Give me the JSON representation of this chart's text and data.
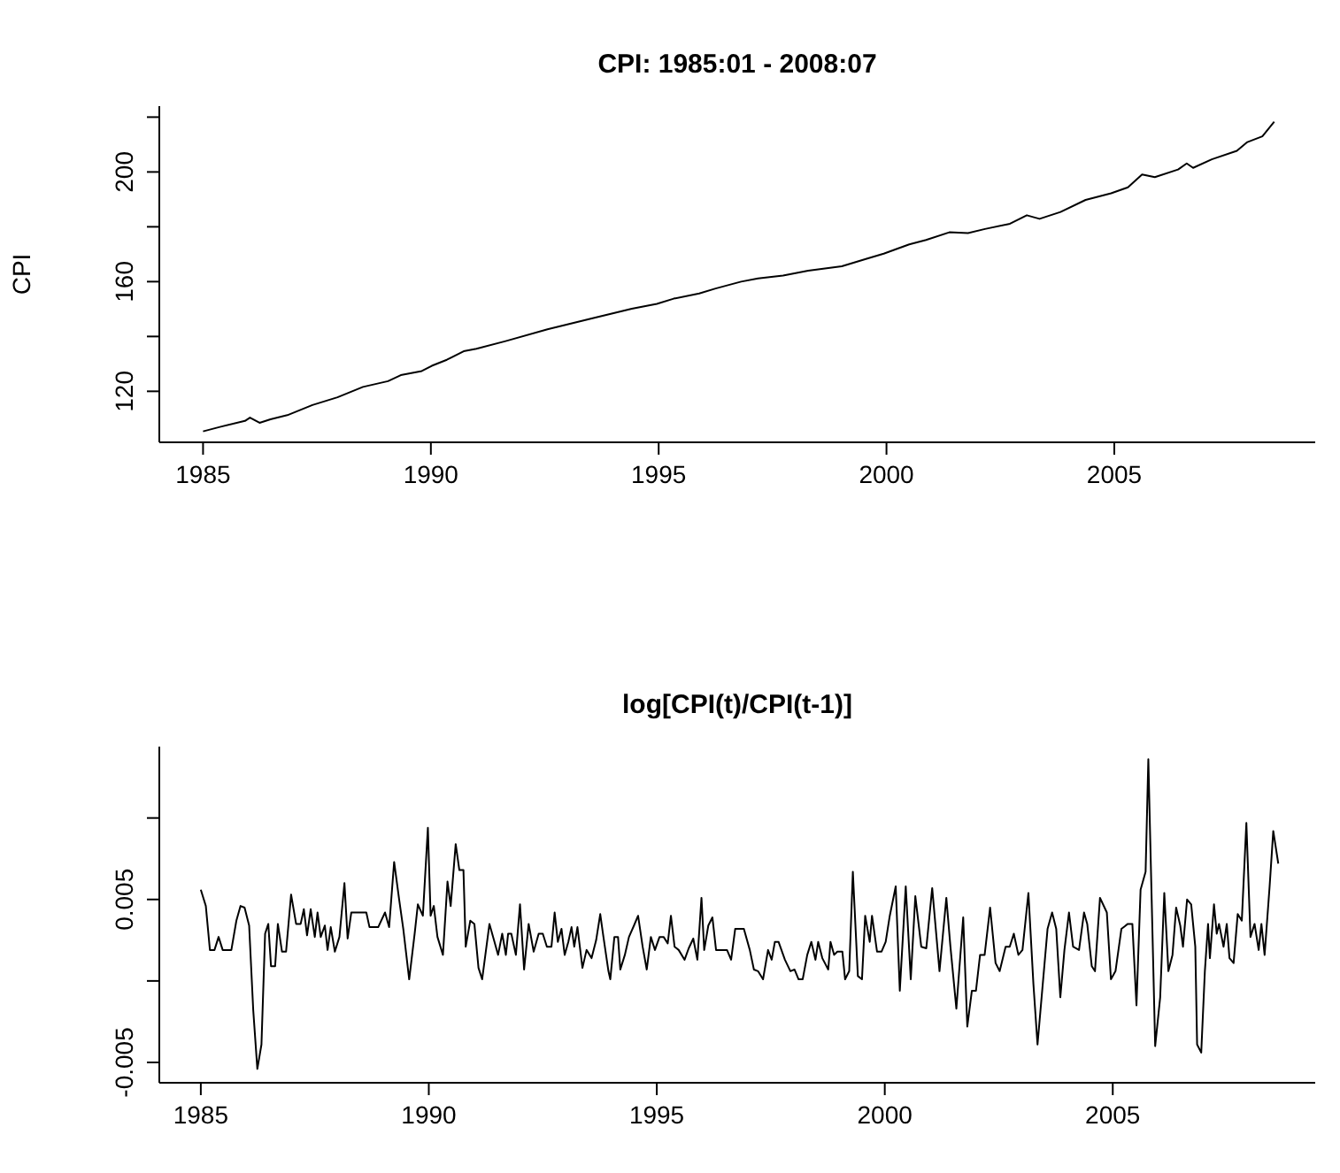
{
  "chart_data": [
    {
      "type": "line",
      "title": "CPI: 1985:01 - 2008:07",
      "ylabel": "CPI",
      "color": "#000000",
      "x": [
        1985.0,
        1985.37,
        1985.92,
        1986.03,
        1986.24,
        1986.48,
        1986.85,
        1987.4,
        1987.95,
        1988.51,
        1989.06,
        1989.34,
        1989.8,
        1990.02,
        1990.35,
        1990.72,
        1991.0,
        1991.64,
        1992.56,
        1993.49,
        1994.41,
        1994.96,
        1995.33,
        1995.89,
        1996.25,
        1996.81,
        1997.18,
        1997.73,
        1998.28,
        1999.02,
        1999.58,
        1999.94,
        2000.5,
        2000.87,
        2001.38,
        2001.79,
        2002.16,
        2002.71,
        2003.08,
        2003.36,
        2003.82,
        2004.37,
        2004.93,
        2005.3,
        2005.61,
        2005.89,
        2006.4,
        2006.59,
        2006.73,
        2007.14,
        2007.69,
        2007.91,
        2008.25,
        2008.51
      ],
      "values": [
        105.4,
        107,
        109.2,
        110.4,
        108.5,
        109.8,
        111.3,
        115.0,
        117.8,
        121.6,
        123.7,
        125.9,
        127.4,
        129.3,
        131.5,
        134.6,
        135.5,
        138.3,
        142.6,
        146.4,
        150.1,
        151.9,
        153.8,
        155.7,
        157.5,
        160.0,
        161.2,
        162.2,
        164.0,
        165.6,
        168.4,
        170.2,
        173.6,
        175.2,
        178.0,
        177.7,
        179.2,
        181.1,
        184.2,
        182.9,
        185.4,
        189.8,
        192.2,
        194.4,
        199.1,
        198.1,
        200.9,
        203.1,
        201.5,
        204.6,
        207.7,
        210.8,
        213.0,
        218.3
      ],
      "xlim": [
        1984.04,
        2009.41
      ],
      "ylim": [
        101.4,
        224
      ],
      "xticks": [
        1985,
        1990,
        1995,
        2000,
        2005
      ],
      "yticks": [
        120,
        {
          "value": 140,
          "label": null
        },
        160,
        {
          "value": 180,
          "label": null
        },
        200,
        {
          "value": 220,
          "label": null
        }
      ]
    },
    {
      "type": "line",
      "title": "log[CPI(t)/CPI(t-1)]",
      "color": "#000000",
      "x": [
        1985.0,
        1985.11,
        1985.2,
        1985.3,
        1985.39,
        1985.48,
        1985.61,
        1985.67,
        1985.78,
        1985.87,
        1985.96,
        1986.06,
        1986.15,
        1986.24,
        1986.33,
        1986.37,
        1986.41,
        1986.48,
        1986.54,
        1986.63,
        1986.69,
        1986.78,
        1986.87,
        1986.98,
        1987.09,
        1987.19,
        1987.26,
        1987.33,
        1987.41,
        1987.5,
        1987.56,
        1987.63,
        1987.72,
        1987.78,
        1987.85,
        1987.94,
        1988.04,
        1988.15,
        1988.22,
        1988.3,
        1988.48,
        1988.63,
        1988.7,
        1988.89,
        1989.04,
        1989.13,
        1989.24,
        1989.35,
        1989.44,
        1989.57,
        1989.69,
        1989.76,
        1989.87,
        1989.98,
        1990.04,
        1990.11,
        1990.19,
        1990.31,
        1990.41,
        1990.48,
        1990.59,
        1990.67,
        1990.76,
        1990.81,
        1990.91,
        1991.0,
        1991.09,
        1991.17,
        1991.33,
        1991.43,
        1991.52,
        1991.61,
        1991.69,
        1991.74,
        1991.81,
        1991.91,
        1992.0,
        1992.09,
        1992.19,
        1992.3,
        1992.41,
        1992.5,
        1992.59,
        1992.69,
        1992.76,
        1992.83,
        1992.91,
        1992.98,
        1993.06,
        1993.13,
        1993.19,
        1993.26,
        1993.37,
        1993.46,
        1993.57,
        1993.67,
        1993.76,
        1993.83,
        1993.94,
        1993.98,
        1994.07,
        1994.15,
        1994.2,
        1994.3,
        1994.39,
        1994.5,
        1994.59,
        1994.69,
        1994.78,
        1994.87,
        1994.96,
        1995.06,
        1995.15,
        1995.24,
        1995.31,
        1995.39,
        1995.48,
        1995.61,
        1995.7,
        1995.8,
        1995.89,
        1995.98,
        1996.04,
        1996.13,
        1996.22,
        1996.3,
        1996.44,
        1996.54,
        1996.63,
        1996.72,
        1996.91,
        1997.04,
        1997.13,
        1997.22,
        1997.33,
        1997.44,
        1997.52,
        1997.59,
        1997.67,
        1997.81,
        1997.93,
        1998.02,
        1998.11,
        1998.2,
        1998.3,
        1998.39,
        1998.48,
        1998.54,
        1998.63,
        1998.76,
        1998.81,
        1998.89,
        1998.96,
        1999.07,
        1999.13,
        1999.22,
        1999.3,
        1999.41,
        1999.5,
        1999.57,
        1999.67,
        1999.72,
        1999.83,
        1999.93,
        2000.02,
        2000.11,
        2000.24,
        2000.33,
        2000.46,
        2000.57,
        2000.67,
        2000.8,
        2000.91,
        2001.04,
        2001.2,
        2001.35,
        2001.44,
        2001.57,
        2001.72,
        2001.81,
        2001.91,
        2002.0,
        2002.09,
        2002.19,
        2002.31,
        2002.43,
        2002.52,
        2002.65,
        2002.74,
        2002.83,
        2002.93,
        2003.02,
        2003.15,
        2003.26,
        2003.35,
        2003.48,
        2003.57,
        2003.67,
        2003.76,
        2003.85,
        2003.94,
        2004.04,
        2004.13,
        2004.26,
        2004.37,
        2004.44,
        2004.54,
        2004.61,
        2004.72,
        2004.87,
        2004.96,
        2005.06,
        2005.19,
        2005.33,
        2005.43,
        2005.52,
        2005.61,
        2005.72,
        2005.78,
        2005.93,
        2006.04,
        2006.13,
        2006.22,
        2006.31,
        2006.39,
        2006.48,
        2006.54,
        2006.63,
        2006.72,
        2006.81,
        2006.85,
        2006.94,
        2007.02,
        2007.09,
        2007.13,
        2007.22,
        2007.28,
        2007.33,
        2007.43,
        2007.5,
        2007.56,
        2007.65,
        2007.74,
        2007.83,
        2007.93,
        2008.02,
        2008.11,
        2008.2,
        2008.26,
        2008.33,
        2008.44,
        2008.52,
        2008.63
      ],
      "values": [
        0.0056,
        0.0046,
        0.0019,
        0.0019,
        0.0027,
        0.0019,
        0.0019,
        0.0019,
        0.0037,
        0.0046,
        0.0045,
        0.0034,
        -0.0018,
        -0.0054,
        -0.0039,
        -0.0005,
        0.0029,
        0.0035,
        0.0009,
        0.0009,
        0.0035,
        0.0018,
        0.0018,
        0.0053,
        0.0035,
        0.0035,
        0.0044,
        0.0028,
        0.0044,
        0.0027,
        0.0042,
        0.0027,
        0.0034,
        0.0019,
        0.0033,
        0.0018,
        0.0027,
        0.006,
        0.0026,
        0.0042,
        0.0042,
        0.0042,
        0.0033,
        0.0033,
        0.0042,
        0.0033,
        0.0073,
        0.005,
        0.0032,
        0.0001,
        0.0029,
        0.0047,
        0.004,
        0.0094,
        0.004,
        0.0046,
        0.0027,
        0.0016,
        0.0061,
        0.0046,
        0.0084,
        0.0068,
        0.0068,
        0.0021,
        0.0037,
        0.0035,
        0.0008,
        0.0001,
        0.0035,
        0.0025,
        0.0016,
        0.0029,
        0.0016,
        0.0029,
        0.0029,
        0.0016,
        0.0047,
        0.0007,
        0.0035,
        0.0018,
        0.0029,
        0.0029,
        0.0021,
        0.0021,
        0.0042,
        0.0024,
        0.0032,
        0.0016,
        0.0024,
        0.0033,
        0.0021,
        0.0033,
        0.0008,
        0.0019,
        0.0014,
        0.0025,
        0.0041,
        0.0027,
        0.0006,
        0.0001,
        0.0027,
        0.0027,
        0.0007,
        0.0016,
        0.0027,
        0.0034,
        0.004,
        0.0021,
        0.0007,
        0.0027,
        0.0019,
        0.0027,
        0.0027,
        0.0023,
        0.004,
        0.0021,
        0.0019,
        0.0013,
        0.002,
        0.0026,
        0.0013,
        0.0051,
        0.0019,
        0.0034,
        0.0039,
        0.0019,
        0.0019,
        0.0019,
        0.0013,
        0.0032,
        0.0032,
        0.0019,
        0.0007,
        0.0006,
        0.0001,
        0.0019,
        0.0013,
        0.0024,
        0.0024,
        0.0013,
        0.0006,
        0.0007,
        0.0001,
        0.0001,
        0.0016,
        0.0024,
        0.0013,
        0.0024,
        0.0014,
        0.0007,
        0.0024,
        0.0016,
        0.0018,
        0.0018,
        0.0001,
        0.0006,
        0.0067,
        0.0003,
        0.0001,
        0.004,
        0.0024,
        0.004,
        0.0018,
        0.0018,
        0.0024,
        0.004,
        0.0058,
        -0.0006,
        0.0058,
        0.0001,
        0.0052,
        0.0021,
        0.002,
        0.0057,
        0.0006,
        0.0051,
        0.0021,
        -0.0017,
        0.0039,
        -0.0028,
        -0.0006,
        -0.0006,
        0.0016,
        0.0016,
        0.0045,
        0.0011,
        0.0006,
        0.0021,
        0.0021,
        0.0029,
        0.0016,
        0.0019,
        0.0054,
        -0.0002,
        -0.0039,
        0.0003,
        0.0032,
        0.0042,
        0.0032,
        -0.001,
        0.0019,
        0.0042,
        0.0021,
        0.0019,
        0.0042,
        0.0035,
        0.0009,
        0.0006,
        0.0051,
        0.0042,
        0.0001,
        0.0006,
        0.0032,
        0.0035,
        0.0035,
        -0.0015,
        0.0056,
        0.0067,
        0.0136,
        -0.004,
        -0.001,
        0.0054,
        0.0006,
        0.0016,
        0.0045,
        0.0034,
        0.0021,
        0.005,
        0.0047,
        0.0021,
        -0.0039,
        -0.0044,
        0.0006,
        0.0035,
        0.0014,
        0.0047,
        0.0029,
        0.0035,
        0.0021,
        0.0035,
        0.0014,
        0.0011,
        0.0041,
        0.0037,
        0.0097,
        0.0027,
        0.0035,
        0.0019,
        0.0035,
        0.0016,
        0.0058,
        0.0092,
        0.0072
      ],
      "xlim": [
        1984.09,
        2009.44
      ],
      "ylim": [
        -0.00625,
        0.01438
      ],
      "xticks": [
        1985,
        1990,
        1995,
        2000,
        2005
      ],
      "yticks": [
        -0.005,
        {
          "value": 0,
          "label": null
        },
        0.005,
        {
          "value": 0.01,
          "label": null
        }
      ]
    }
  ]
}
